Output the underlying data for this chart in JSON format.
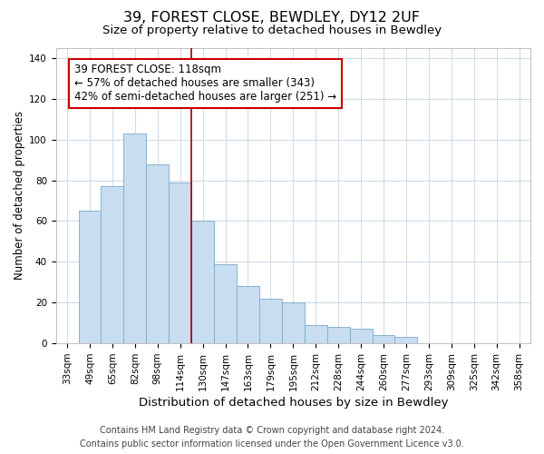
{
  "title": "39, FOREST CLOSE, BEWDLEY, DY12 2UF",
  "subtitle": "Size of property relative to detached houses in Bewdley",
  "xlabel": "Distribution of detached houses by size in Bewdley",
  "ylabel": "Number of detached properties",
  "bar_labels": [
    "33sqm",
    "49sqm",
    "65sqm",
    "82sqm",
    "98sqm",
    "114sqm",
    "130sqm",
    "147sqm",
    "163sqm",
    "179sqm",
    "195sqm",
    "212sqm",
    "228sqm",
    "244sqm",
    "260sqm",
    "277sqm",
    "293sqm",
    "309sqm",
    "325sqm",
    "342sqm",
    "358sqm"
  ],
  "bar_values": [
    0,
    65,
    77,
    103,
    88,
    79,
    60,
    39,
    28,
    22,
    20,
    9,
    8,
    7,
    4,
    3,
    0,
    0,
    0,
    0,
    0
  ],
  "bar_color": "#c8ddf0",
  "bar_edge_color": "#7aaac8",
  "vline_x": 5.5,
  "vline_color": "#990000",
  "annotation_text": "39 FOREST CLOSE: 118sqm\n← 57% of detached houses are smaller (343)\n42% of semi-detached houses are larger (251) →",
  "annotation_box_color": "white",
  "annotation_box_edge_color": "#cc0000",
  "ylim": [
    0,
    145
  ],
  "yticks": [
    0,
    20,
    40,
    60,
    80,
    100,
    120,
    140
  ],
  "footer_line1": "Contains HM Land Registry data © Crown copyright and database right 2024.",
  "footer_line2": "Contains public sector information licensed under the Open Government Licence v3.0.",
  "title_fontsize": 11.5,
  "subtitle_fontsize": 9.5,
  "xlabel_fontsize": 9.5,
  "ylabel_fontsize": 8.5,
  "tick_fontsize": 7.5,
  "annotation_fontsize": 8.5,
  "footer_fontsize": 7,
  "bg_color": "#ffffff",
  "grid_color": "#d0dce8"
}
